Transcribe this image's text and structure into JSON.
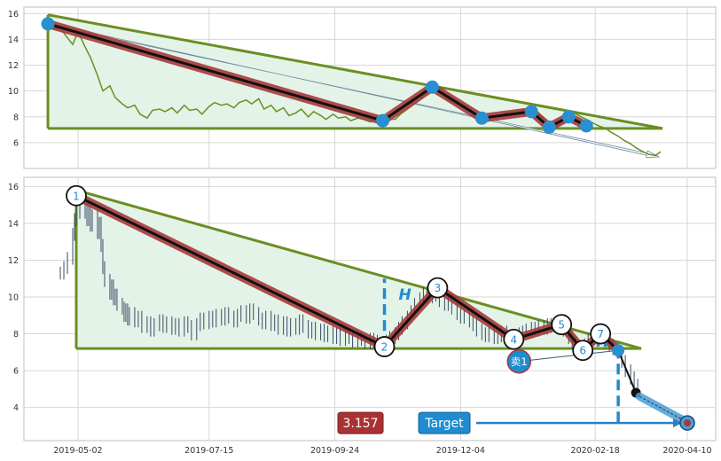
{
  "chart_data": [
    {
      "type": "line",
      "panel": "top",
      "ylim": [
        4,
        16.5
      ],
      "y_ticks": [
        6,
        8,
        10,
        12,
        14,
        16
      ],
      "grid": true,
      "colors": {
        "price_line": "#6b8e23",
        "triangle": "#6b8e23",
        "fill": "#e3f2e6",
        "zigzag_outer": "#a03030",
        "zigzag_inner": "#111111",
        "pivot_dots": "#2a8fd0"
      },
      "price_series": [
        [
          "2019-04-15",
          15.2
        ],
        [
          "2019-04-18",
          14.8
        ],
        [
          "2019-04-22",
          14.9
        ],
        [
          "2019-04-25",
          14.3
        ],
        [
          "2019-04-29",
          13.6
        ],
        [
          "2019-05-02",
          14.6
        ],
        [
          "2019-05-06",
          13.4
        ],
        [
          "2019-05-09",
          12.6
        ],
        [
          "2019-05-13",
          11.2
        ],
        [
          "2019-05-16",
          10.0
        ],
        [
          "2019-05-20",
          10.4
        ],
        [
          "2019-05-23",
          9.5
        ],
        [
          "2019-05-27",
          9.0
        ],
        [
          "2019-05-30",
          8.7
        ],
        [
          "2019-06-03",
          8.9
        ],
        [
          "2019-06-06",
          8.2
        ],
        [
          "2019-06-10",
          7.9
        ],
        [
          "2019-06-13",
          8.5
        ],
        [
          "2019-06-17",
          8.6
        ],
        [
          "2019-06-20",
          8.4
        ],
        [
          "2019-06-24",
          8.7
        ],
        [
          "2019-06-27",
          8.3
        ],
        [
          "2019-07-01",
          8.9
        ],
        [
          "2019-07-04",
          8.5
        ],
        [
          "2019-07-08",
          8.6
        ],
        [
          "2019-07-11",
          8.2
        ],
        [
          "2019-07-15",
          8.8
        ],
        [
          "2019-07-18",
          9.1
        ],
        [
          "2019-07-22",
          8.9
        ],
        [
          "2019-07-25",
          9.0
        ],
        [
          "2019-07-29",
          8.7
        ],
        [
          "2019-08-01",
          9.1
        ],
        [
          "2019-08-05",
          9.3
        ],
        [
          "2019-08-08",
          9.0
        ],
        [
          "2019-08-12",
          9.4
        ],
        [
          "2019-08-15",
          8.6
        ],
        [
          "2019-08-19",
          8.9
        ],
        [
          "2019-08-22",
          8.4
        ],
        [
          "2019-08-26",
          8.7
        ],
        [
          "2019-08-29",
          8.1
        ],
        [
          "2019-09-02",
          8.3
        ],
        [
          "2019-09-05",
          8.6
        ],
        [
          "2019-09-09",
          8.0
        ],
        [
          "2019-09-12",
          8.4
        ],
        [
          "2019-09-16",
          8.1
        ],
        [
          "2019-09-19",
          7.8
        ],
        [
          "2019-09-23",
          8.2
        ],
        [
          "2019-09-26",
          7.9
        ],
        [
          "2019-09-30",
          8.0
        ],
        [
          "2019-10-03",
          7.7
        ],
        [
          "2019-10-07",
          7.9
        ],
        [
          "2019-10-10",
          7.8
        ],
        [
          "2019-10-14",
          7.6
        ],
        [
          "2019-10-17",
          7.8
        ],
        [
          "2019-10-21",
          7.7
        ],
        [
          "2019-10-24",
          7.9
        ],
        [
          "2019-10-28",
          7.8
        ],
        [
          "2019-10-31",
          8.2
        ],
        [
          "2019-11-04",
          8.6
        ],
        [
          "2019-11-07",
          8.9
        ],
        [
          "2019-11-11",
          9.3
        ],
        [
          "2019-11-14",
          9.8
        ],
        [
          "2019-11-18",
          10.3
        ],
        [
          "2019-11-21",
          10.1
        ],
        [
          "2019-11-25",
          9.6
        ],
        [
          "2019-11-28",
          9.2
        ],
        [
          "2019-12-02",
          9.0
        ],
        [
          "2019-12-05",
          8.8
        ],
        [
          "2019-12-09",
          8.5
        ],
        [
          "2019-12-12",
          8.2
        ],
        [
          "2019-12-16",
          8.0
        ],
        [
          "2019-12-19",
          7.9
        ],
        [
          "2019-12-23",
          8.0
        ],
        [
          "2019-12-26",
          8.1
        ],
        [
          "2019-12-30",
          8.3
        ],
        [
          "2020-01-02",
          8.2
        ],
        [
          "2020-01-06",
          8.4
        ],
        [
          "2020-01-09",
          8.6
        ],
        [
          "2020-01-13",
          8.5
        ],
        [
          "2020-01-16",
          8.3
        ],
        [
          "2020-01-20",
          7.9
        ],
        [
          "2020-01-23",
          7.5
        ],
        [
          "2020-01-27",
          7.2
        ],
        [
          "2020-01-30",
          7.6
        ],
        [
          "2020-02-03",
          8.0
        ],
        [
          "2020-02-06",
          8.3
        ],
        [
          "2020-02-10",
          8.0
        ],
        [
          "2020-02-13",
          7.8
        ],
        [
          "2020-02-17",
          7.5
        ],
        [
          "2020-02-20",
          7.3
        ],
        [
          "2020-02-24",
          7.1
        ],
        [
          "2020-02-27",
          6.8
        ],
        [
          "2020-03-02",
          6.5
        ],
        [
          "2020-03-05",
          6.2
        ],
        [
          "2020-03-09",
          5.9
        ],
        [
          "2020-03-12",
          5.6
        ],
        [
          "2020-03-16",
          5.3
        ],
        [
          "2020-03-19",
          5.1
        ],
        [
          "2020-03-23",
          5.0
        ],
        [
          "2020-03-26",
          5.3
        ]
      ],
      "triangle": {
        "apex": [
          "2019-04-15",
          15.9
        ],
        "right": [
          "2020-03-27",
          7.1
        ],
        "base_left": [
          "2019-04-15",
          7.1
        ]
      },
      "zigzag": [
        [
          "2019-04-15",
          15.2
        ],
        [
          "2019-10-21",
          7.7
        ],
        [
          "2019-11-18",
          10.3
        ],
        [
          "2019-12-16",
          7.9
        ],
        [
          "2020-01-13",
          8.4
        ],
        [
          "2020-01-23",
          7.2
        ],
        [
          "2020-02-03",
          8.0
        ],
        [
          "2020-02-13",
          7.3
        ]
      ],
      "arrow": {
        "from": [
          "2019-04-15",
          15.2
        ],
        "to": [
          "2020-03-25",
          4.9
        ]
      }
    },
    {
      "type": "candlestick",
      "panel": "bottom",
      "ylim": [
        2.2,
        16.5
      ],
      "y_ticks": [
        4,
        6,
        8,
        10,
        12,
        14,
        16
      ],
      "x_tick_labels": [
        "2019-05-02",
        "2019-07-15",
        "2019-09-24",
        "2019-12-04",
        "2020-02-18",
        "2020-04-10"
      ],
      "grid": true,
      "colors": {
        "candles": "#3a4a6a",
        "triangle": "#6b8e23",
        "fill": "#e3f2e6",
        "zigzag_outer": "#a03030",
        "zigzag_inner": "#111111",
        "dashed": "#1f8bd0",
        "target_arrow": "#2a7fc0",
        "target_box": "#1f8bd0",
        "value_box": "#a83232"
      },
      "triangle": {
        "apex": [
          "2019-05-01",
          15.8
        ],
        "right": [
          "2020-03-15",
          7.2
        ],
        "base_left": [
          "2019-05-01",
          7.2
        ]
      },
      "zigzag": [
        {
          "date": "2019-05-01",
          "value": 15.5,
          "label": "1"
        },
        {
          "date": "2019-10-22",
          "value": 7.3,
          "label": "2"
        },
        {
          "date": "2019-11-21",
          "value": 10.5,
          "label": "3"
        },
        {
          "date": "2020-01-03",
          "value": 7.7,
          "label": "4"
        },
        {
          "date": "2020-01-30",
          "value": 8.5,
          "label": "5"
        },
        {
          "date": "2020-02-11",
          "value": 7.1,
          "label": "6"
        },
        {
          "date": "2020-02-21",
          "value": 8.0,
          "label": "7"
        },
        {
          "date": "2020-03-02",
          "value": 7.1,
          "label": ""
        }
      ],
      "breakout_line": {
        "from": [
          "2020-03-02",
          7.1
        ],
        "to": [
          "2020-03-12",
          4.8
        ]
      },
      "breakout_dot": [
        "2020-03-12",
        4.8
      ],
      "projection": {
        "from": [
          "2020-03-14",
          4.6
        ],
        "to": [
          "2020-04-10",
          3.2
        ]
      },
      "target_point": [
        "2020-04-10",
        3.157
      ],
      "h_markers": [
        {
          "label": "H",
          "date": "2019-10-22",
          "from": 7.3,
          "to": 11.0
        },
        {
          "label": "H",
          "date": "2020-03-02",
          "from": 3.2,
          "to": 7.1
        }
      ],
      "sell_marker": {
        "label": "卖1",
        "date": "2020-01-06",
        "value": 6.5,
        "line_to": [
          "2020-03-02",
          7.1
        ]
      },
      "target_label": "Target",
      "target_value": "3.157",
      "candles": [
        [
          "2019-04-22",
          11.3
        ],
        [
          "2019-04-24",
          11.6
        ],
        [
          "2019-04-26",
          12.1
        ],
        [
          "2019-04-29",
          13.4
        ],
        [
          "2019-04-30",
          14.2
        ],
        [
          "2019-05-01",
          15.1
        ],
        [
          "2019-05-03",
          14.6
        ],
        [
          "2019-05-06",
          14.9
        ],
        [
          "2019-05-07",
          14.2
        ],
        [
          "2019-05-08",
          14.8
        ],
        [
          "2019-05-09",
          13.9
        ],
        [
          "2019-05-10",
          14.4
        ],
        [
          "2019-05-13",
          13.5
        ],
        [
          "2019-05-14",
          14.0
        ],
        [
          "2019-05-15",
          12.8
        ],
        [
          "2019-05-16",
          11.6
        ],
        [
          "2019-05-17",
          10.9
        ],
        [
          "2019-05-20",
          10.2
        ],
        [
          "2019-05-21",
          10.6
        ],
        [
          "2019-05-22",
          9.9
        ],
        [
          "2019-05-23",
          10.1
        ],
        [
          "2019-05-24",
          9.6
        ],
        [
          "2019-05-27",
          9.4
        ],
        [
          "2019-05-28",
          9.0
        ],
        [
          "2019-05-29",
          9.3
        ],
        [
          "2019-05-30",
          8.8
        ],
        [
          "2019-05-31",
          9.1
        ],
        [
          "2019-06-03",
          8.7
        ],
        [
          "2019-06-05",
          8.9
        ],
        [
          "2019-06-07",
          8.4
        ],
        [
          "2019-06-10",
          8.6
        ],
        [
          "2019-06-12",
          8.2
        ],
        [
          "2019-06-14",
          8.5
        ],
        [
          "2019-06-17",
          8.7
        ],
        [
          "2019-06-19",
          8.4
        ],
        [
          "2019-06-21",
          8.6
        ],
        [
          "2019-06-24",
          8.3
        ],
        [
          "2019-06-26",
          8.5
        ],
        [
          "2019-06-28",
          8.2
        ],
        [
          "2019-07-01",
          8.6
        ],
        [
          "2019-07-03",
          8.4
        ],
        [
          "2019-07-05",
          8.0
        ],
        [
          "2019-07-08",
          8.5
        ],
        [
          "2019-07-10",
          8.8
        ],
        [
          "2019-07-12",
          8.6
        ],
        [
          "2019-07-15",
          8.9
        ],
        [
          "2019-07-17",
          8.7
        ],
        [
          "2019-07-19",
          9.0
        ],
        [
          "2019-07-22",
          8.8
        ],
        [
          "2019-07-24",
          9.1
        ],
        [
          "2019-07-26",
          8.9
        ],
        [
          "2019-07-29",
          8.7
        ],
        [
          "2019-07-31",
          9.0
        ],
        [
          "2019-08-02",
          9.2
        ],
        [
          "2019-08-05",
          8.9
        ],
        [
          "2019-08-07",
          9.3
        ],
        [
          "2019-08-09",
          9.1
        ],
        [
          "2019-08-12",
          8.8
        ],
        [
          "2019-08-14",
          8.6
        ],
        [
          "2019-08-16",
          8.9
        ],
        [
          "2019-08-19",
          8.5
        ],
        [
          "2019-08-21",
          8.7
        ],
        [
          "2019-08-23",
          8.3
        ],
        [
          "2019-08-26",
          8.6
        ],
        [
          "2019-08-28",
          8.2
        ],
        [
          "2019-08-30",
          8.5
        ],
        [
          "2019-09-02",
          8.3
        ],
        [
          "2019-09-04",
          8.7
        ],
        [
          "2019-09-06",
          8.4
        ],
        [
          "2019-09-09",
          8.1
        ],
        [
          "2019-09-11",
          8.3
        ],
        [
          "2019-09-13",
          8.0
        ],
        [
          "2019-09-16",
          8.2
        ],
        [
          "2019-09-18",
          7.9
        ],
        [
          "2019-09-20",
          8.1
        ],
        [
          "2019-09-23",
          7.8
        ],
        [
          "2019-09-25",
          8.0
        ],
        [
          "2019-09-27",
          7.7
        ],
        [
          "2019-09-30",
          7.9
        ],
        [
          "2019-10-02",
          7.8
        ],
        [
          "2019-10-04",
          7.6
        ],
        [
          "2019-10-07",
          7.8
        ],
        [
          "2019-10-09",
          7.7
        ],
        [
          "2019-10-11",
          7.5
        ],
        [
          "2019-10-14",
          7.7
        ],
        [
          "2019-10-16",
          7.6
        ],
        [
          "2019-10-18",
          7.4
        ],
        [
          "2019-10-21",
          7.5
        ],
        [
          "2019-10-23",
          7.6
        ],
        [
          "2019-10-25",
          7.8
        ],
        [
          "2019-10-28",
          8.0
        ],
        [
          "2019-10-30",
          8.3
        ],
        [
          "2019-11-01",
          8.6
        ],
        [
          "2019-11-04",
          8.9
        ],
        [
          "2019-11-06",
          9.2
        ],
        [
          "2019-11-08",
          9.6
        ],
        [
          "2019-11-11",
          9.9
        ],
        [
          "2019-11-13",
          10.2
        ],
        [
          "2019-11-15",
          10.0
        ],
        [
          "2019-11-18",
          10.4
        ],
        [
          "2019-11-20",
          10.1
        ],
        [
          "2019-11-22",
          9.8
        ],
        [
          "2019-11-25",
          9.6
        ],
        [
          "2019-11-27",
          9.9
        ],
        [
          "2019-11-29",
          9.4
        ],
        [
          "2019-12-02",
          9.1
        ],
        [
          "2019-12-04",
          8.9
        ],
        [
          "2019-12-06",
          9.0
        ],
        [
          "2019-12-09",
          8.7
        ],
        [
          "2019-12-11",
          8.5
        ],
        [
          "2019-12-13",
          8.2
        ],
        [
          "2019-12-16",
          8.0
        ],
        [
          "2019-12-18",
          7.9
        ],
        [
          "2019-12-20",
          8.0
        ],
        [
          "2019-12-23",
          7.8
        ],
        [
          "2019-12-25",
          7.9
        ],
        [
          "2019-12-27",
          8.1
        ],
        [
          "2019-12-30",
          7.9
        ],
        [
          "2020-01-02",
          7.8
        ],
        [
          "2020-01-06",
          8.0
        ],
        [
          "2020-01-08",
          8.1
        ],
        [
          "2020-01-10",
          8.2
        ],
        [
          "2020-01-13",
          8.3
        ],
        [
          "2020-01-15",
          8.2
        ],
        [
          "2020-01-17",
          8.4
        ],
        [
          "2020-01-20",
          8.3
        ],
        [
          "2020-01-22",
          8.5
        ],
        [
          "2020-01-24",
          8.4
        ],
        [
          "2020-01-27",
          8.6
        ],
        [
          "2020-01-29",
          8.5
        ],
        [
          "2020-01-31",
          8.2
        ],
        [
          "2020-02-03",
          7.8
        ],
        [
          "2020-02-05",
          7.5
        ],
        [
          "2020-02-07",
          7.3
        ],
        [
          "2020-02-10",
          7.2
        ],
        [
          "2020-02-12",
          7.4
        ],
        [
          "2020-02-14",
          7.7
        ],
        [
          "2020-02-17",
          7.9
        ],
        [
          "2020-02-19",
          8.0
        ],
        [
          "2020-02-21",
          7.8
        ],
        [
          "2020-02-24",
          7.6
        ],
        [
          "2020-02-26",
          7.4
        ],
        [
          "2020-02-28",
          7.2
        ],
        [
          "2020-03-02",
          7.0
        ],
        [
          "2020-03-04",
          6.5
        ],
        [
          "2020-03-06",
          6.0
        ],
        [
          "2020-03-09",
          5.6
        ],
        [
          "2020-03-11",
          5.2
        ],
        [
          "2020-03-13",
          5.0
        ]
      ]
    }
  ]
}
